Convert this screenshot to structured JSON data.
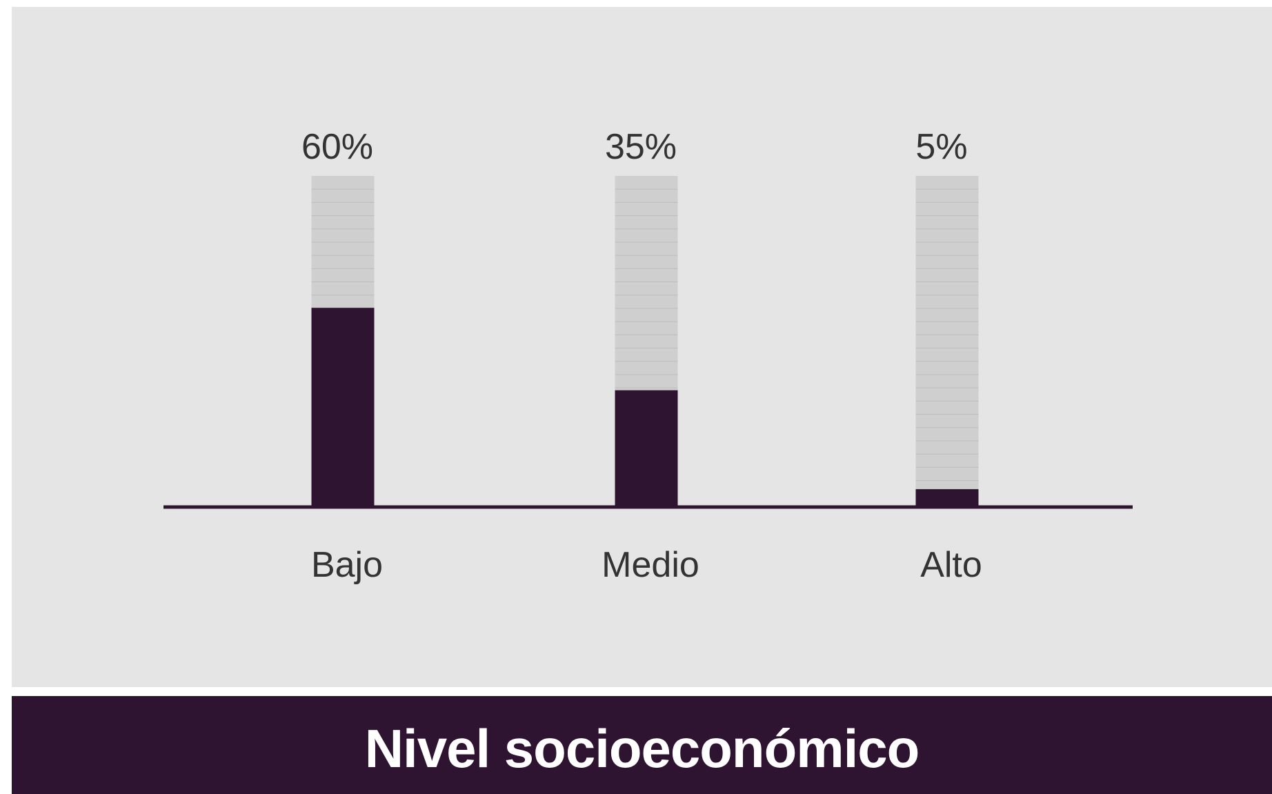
{
  "colors": {
    "panel_background": "#e6e5e6",
    "bar_fill": "#2f1432",
    "bar_remainder": "#cfcfcf",
    "stripe": "#bdbdbd",
    "axis": "#2f1432",
    "text": "#333333",
    "footer_background": "#2f1432",
    "footer_text": "#ffffff"
  },
  "footer": {
    "title": "Nivel socioeconómico"
  },
  "chart_data": {
    "type": "bar",
    "categories": [
      "Bajo",
      "Medio",
      "Alto"
    ],
    "values": [
      60,
      35,
      5
    ],
    "value_labels": [
      "60%",
      "35%",
      "5%"
    ],
    "ylim": [
      0,
      100
    ],
    "grid": false,
    "legend": "none",
    "title": "",
    "xlabel": "",
    "ylabel": ""
  }
}
